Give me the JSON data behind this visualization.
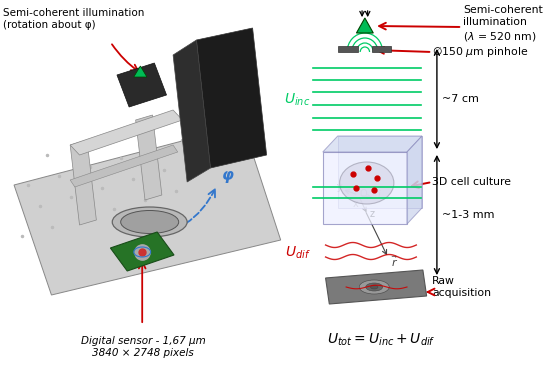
{
  "bg_color": "#ffffff",
  "left_label_text": "Semi-coherent illumination\n(rotation about φ)",
  "right_label_top": "Semi-coherent\nillumination\n(λ = 520 nm)",
  "right_label_pinhole": "Ø150 μm pinhole",
  "right_label_cell": "3D cell culture",
  "right_label_raw": "Raw\nacquisition",
  "label_7cm": "~7 cm",
  "label_1_3mm": "~1-3 mm",
  "phi_label": "φ",
  "bottom_label": "Digital sensor - 1,67 μm\n3840 × 2748 pixels",
  "green_color": "#00bb55",
  "red_color": "#cc0000",
  "blue_color": "#3377cc",
  "dark_gray": "#444444",
  "light_gray": "#aaaaaa",
  "line_green": "#00cc66",
  "plate_color": "#777777",
  "box_face": "#e8ecf8",
  "box_edge": "#8888bb"
}
